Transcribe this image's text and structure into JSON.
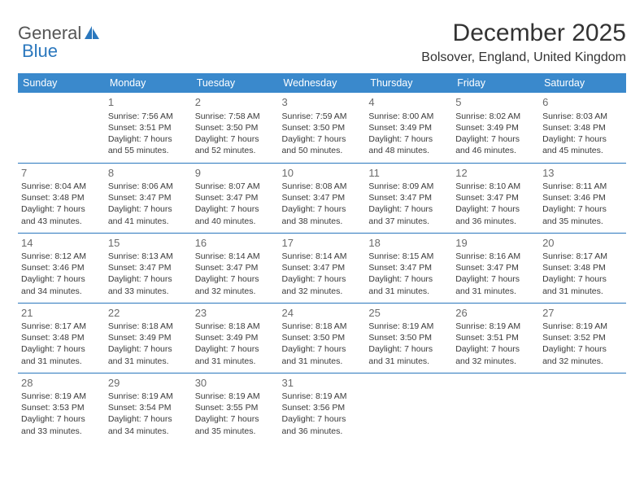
{
  "brand": {
    "part1": "General",
    "part2": "Blue"
  },
  "title": "December 2025",
  "location": "Bolsover, England, United Kingdom",
  "colors": {
    "header_bg": "#3a89cc",
    "header_text": "#ffffff",
    "row_border": "#2a77bd",
    "body_text": "#3a3a3a",
    "daynum": "#6b6b6b",
    "brand_gray": "#555555",
    "brand_blue": "#2a77bd",
    "page_bg": "#ffffff",
    "title_color": "#333333"
  },
  "typography": {
    "title_fontsize_pt": 22,
    "location_fontsize_pt": 12,
    "header_fontsize_pt": 9,
    "cell_fontsize_pt": 8,
    "daynum_fontsize_pt": 10,
    "font_family": "Arial"
  },
  "columns": [
    "Sunday",
    "Monday",
    "Tuesday",
    "Wednesday",
    "Thursday",
    "Friday",
    "Saturday"
  ],
  "weeks": [
    [
      null,
      {
        "n": "1",
        "sr": "Sunrise: 7:56 AM",
        "ss": "Sunset: 3:51 PM",
        "d1": "Daylight: 7 hours",
        "d2": "and 55 minutes."
      },
      {
        "n": "2",
        "sr": "Sunrise: 7:58 AM",
        "ss": "Sunset: 3:50 PM",
        "d1": "Daylight: 7 hours",
        "d2": "and 52 minutes."
      },
      {
        "n": "3",
        "sr": "Sunrise: 7:59 AM",
        "ss": "Sunset: 3:50 PM",
        "d1": "Daylight: 7 hours",
        "d2": "and 50 minutes."
      },
      {
        "n": "4",
        "sr": "Sunrise: 8:00 AM",
        "ss": "Sunset: 3:49 PM",
        "d1": "Daylight: 7 hours",
        "d2": "and 48 minutes."
      },
      {
        "n": "5",
        "sr": "Sunrise: 8:02 AM",
        "ss": "Sunset: 3:49 PM",
        "d1": "Daylight: 7 hours",
        "d2": "and 46 minutes."
      },
      {
        "n": "6",
        "sr": "Sunrise: 8:03 AM",
        "ss": "Sunset: 3:48 PM",
        "d1": "Daylight: 7 hours",
        "d2": "and 45 minutes."
      }
    ],
    [
      {
        "n": "7",
        "sr": "Sunrise: 8:04 AM",
        "ss": "Sunset: 3:48 PM",
        "d1": "Daylight: 7 hours",
        "d2": "and 43 minutes."
      },
      {
        "n": "8",
        "sr": "Sunrise: 8:06 AM",
        "ss": "Sunset: 3:47 PM",
        "d1": "Daylight: 7 hours",
        "d2": "and 41 minutes."
      },
      {
        "n": "9",
        "sr": "Sunrise: 8:07 AM",
        "ss": "Sunset: 3:47 PM",
        "d1": "Daylight: 7 hours",
        "d2": "and 40 minutes."
      },
      {
        "n": "10",
        "sr": "Sunrise: 8:08 AM",
        "ss": "Sunset: 3:47 PM",
        "d1": "Daylight: 7 hours",
        "d2": "and 38 minutes."
      },
      {
        "n": "11",
        "sr": "Sunrise: 8:09 AM",
        "ss": "Sunset: 3:47 PM",
        "d1": "Daylight: 7 hours",
        "d2": "and 37 minutes."
      },
      {
        "n": "12",
        "sr": "Sunrise: 8:10 AM",
        "ss": "Sunset: 3:47 PM",
        "d1": "Daylight: 7 hours",
        "d2": "and 36 minutes."
      },
      {
        "n": "13",
        "sr": "Sunrise: 8:11 AM",
        "ss": "Sunset: 3:46 PM",
        "d1": "Daylight: 7 hours",
        "d2": "and 35 minutes."
      }
    ],
    [
      {
        "n": "14",
        "sr": "Sunrise: 8:12 AM",
        "ss": "Sunset: 3:46 PM",
        "d1": "Daylight: 7 hours",
        "d2": "and 34 minutes."
      },
      {
        "n": "15",
        "sr": "Sunrise: 8:13 AM",
        "ss": "Sunset: 3:47 PM",
        "d1": "Daylight: 7 hours",
        "d2": "and 33 minutes."
      },
      {
        "n": "16",
        "sr": "Sunrise: 8:14 AM",
        "ss": "Sunset: 3:47 PM",
        "d1": "Daylight: 7 hours",
        "d2": "and 32 minutes."
      },
      {
        "n": "17",
        "sr": "Sunrise: 8:14 AM",
        "ss": "Sunset: 3:47 PM",
        "d1": "Daylight: 7 hours",
        "d2": "and 32 minutes."
      },
      {
        "n": "18",
        "sr": "Sunrise: 8:15 AM",
        "ss": "Sunset: 3:47 PM",
        "d1": "Daylight: 7 hours",
        "d2": "and 31 minutes."
      },
      {
        "n": "19",
        "sr": "Sunrise: 8:16 AM",
        "ss": "Sunset: 3:47 PM",
        "d1": "Daylight: 7 hours",
        "d2": "and 31 minutes."
      },
      {
        "n": "20",
        "sr": "Sunrise: 8:17 AM",
        "ss": "Sunset: 3:48 PM",
        "d1": "Daylight: 7 hours",
        "d2": "and 31 minutes."
      }
    ],
    [
      {
        "n": "21",
        "sr": "Sunrise: 8:17 AM",
        "ss": "Sunset: 3:48 PM",
        "d1": "Daylight: 7 hours",
        "d2": "and 31 minutes."
      },
      {
        "n": "22",
        "sr": "Sunrise: 8:18 AM",
        "ss": "Sunset: 3:49 PM",
        "d1": "Daylight: 7 hours",
        "d2": "and 31 minutes."
      },
      {
        "n": "23",
        "sr": "Sunrise: 8:18 AM",
        "ss": "Sunset: 3:49 PM",
        "d1": "Daylight: 7 hours",
        "d2": "and 31 minutes."
      },
      {
        "n": "24",
        "sr": "Sunrise: 8:18 AM",
        "ss": "Sunset: 3:50 PM",
        "d1": "Daylight: 7 hours",
        "d2": "and 31 minutes."
      },
      {
        "n": "25",
        "sr": "Sunrise: 8:19 AM",
        "ss": "Sunset: 3:50 PM",
        "d1": "Daylight: 7 hours",
        "d2": "and 31 minutes."
      },
      {
        "n": "26",
        "sr": "Sunrise: 8:19 AM",
        "ss": "Sunset: 3:51 PM",
        "d1": "Daylight: 7 hours",
        "d2": "and 32 minutes."
      },
      {
        "n": "27",
        "sr": "Sunrise: 8:19 AM",
        "ss": "Sunset: 3:52 PM",
        "d1": "Daylight: 7 hours",
        "d2": "and 32 minutes."
      }
    ],
    [
      {
        "n": "28",
        "sr": "Sunrise: 8:19 AM",
        "ss": "Sunset: 3:53 PM",
        "d1": "Daylight: 7 hours",
        "d2": "and 33 minutes."
      },
      {
        "n": "29",
        "sr": "Sunrise: 8:19 AM",
        "ss": "Sunset: 3:54 PM",
        "d1": "Daylight: 7 hours",
        "d2": "and 34 minutes."
      },
      {
        "n": "30",
        "sr": "Sunrise: 8:19 AM",
        "ss": "Sunset: 3:55 PM",
        "d1": "Daylight: 7 hours",
        "d2": "and 35 minutes."
      },
      {
        "n": "31",
        "sr": "Sunrise: 8:19 AM",
        "ss": "Sunset: 3:56 PM",
        "d1": "Daylight: 7 hours",
        "d2": "and 36 minutes."
      },
      null,
      null,
      null
    ]
  ]
}
